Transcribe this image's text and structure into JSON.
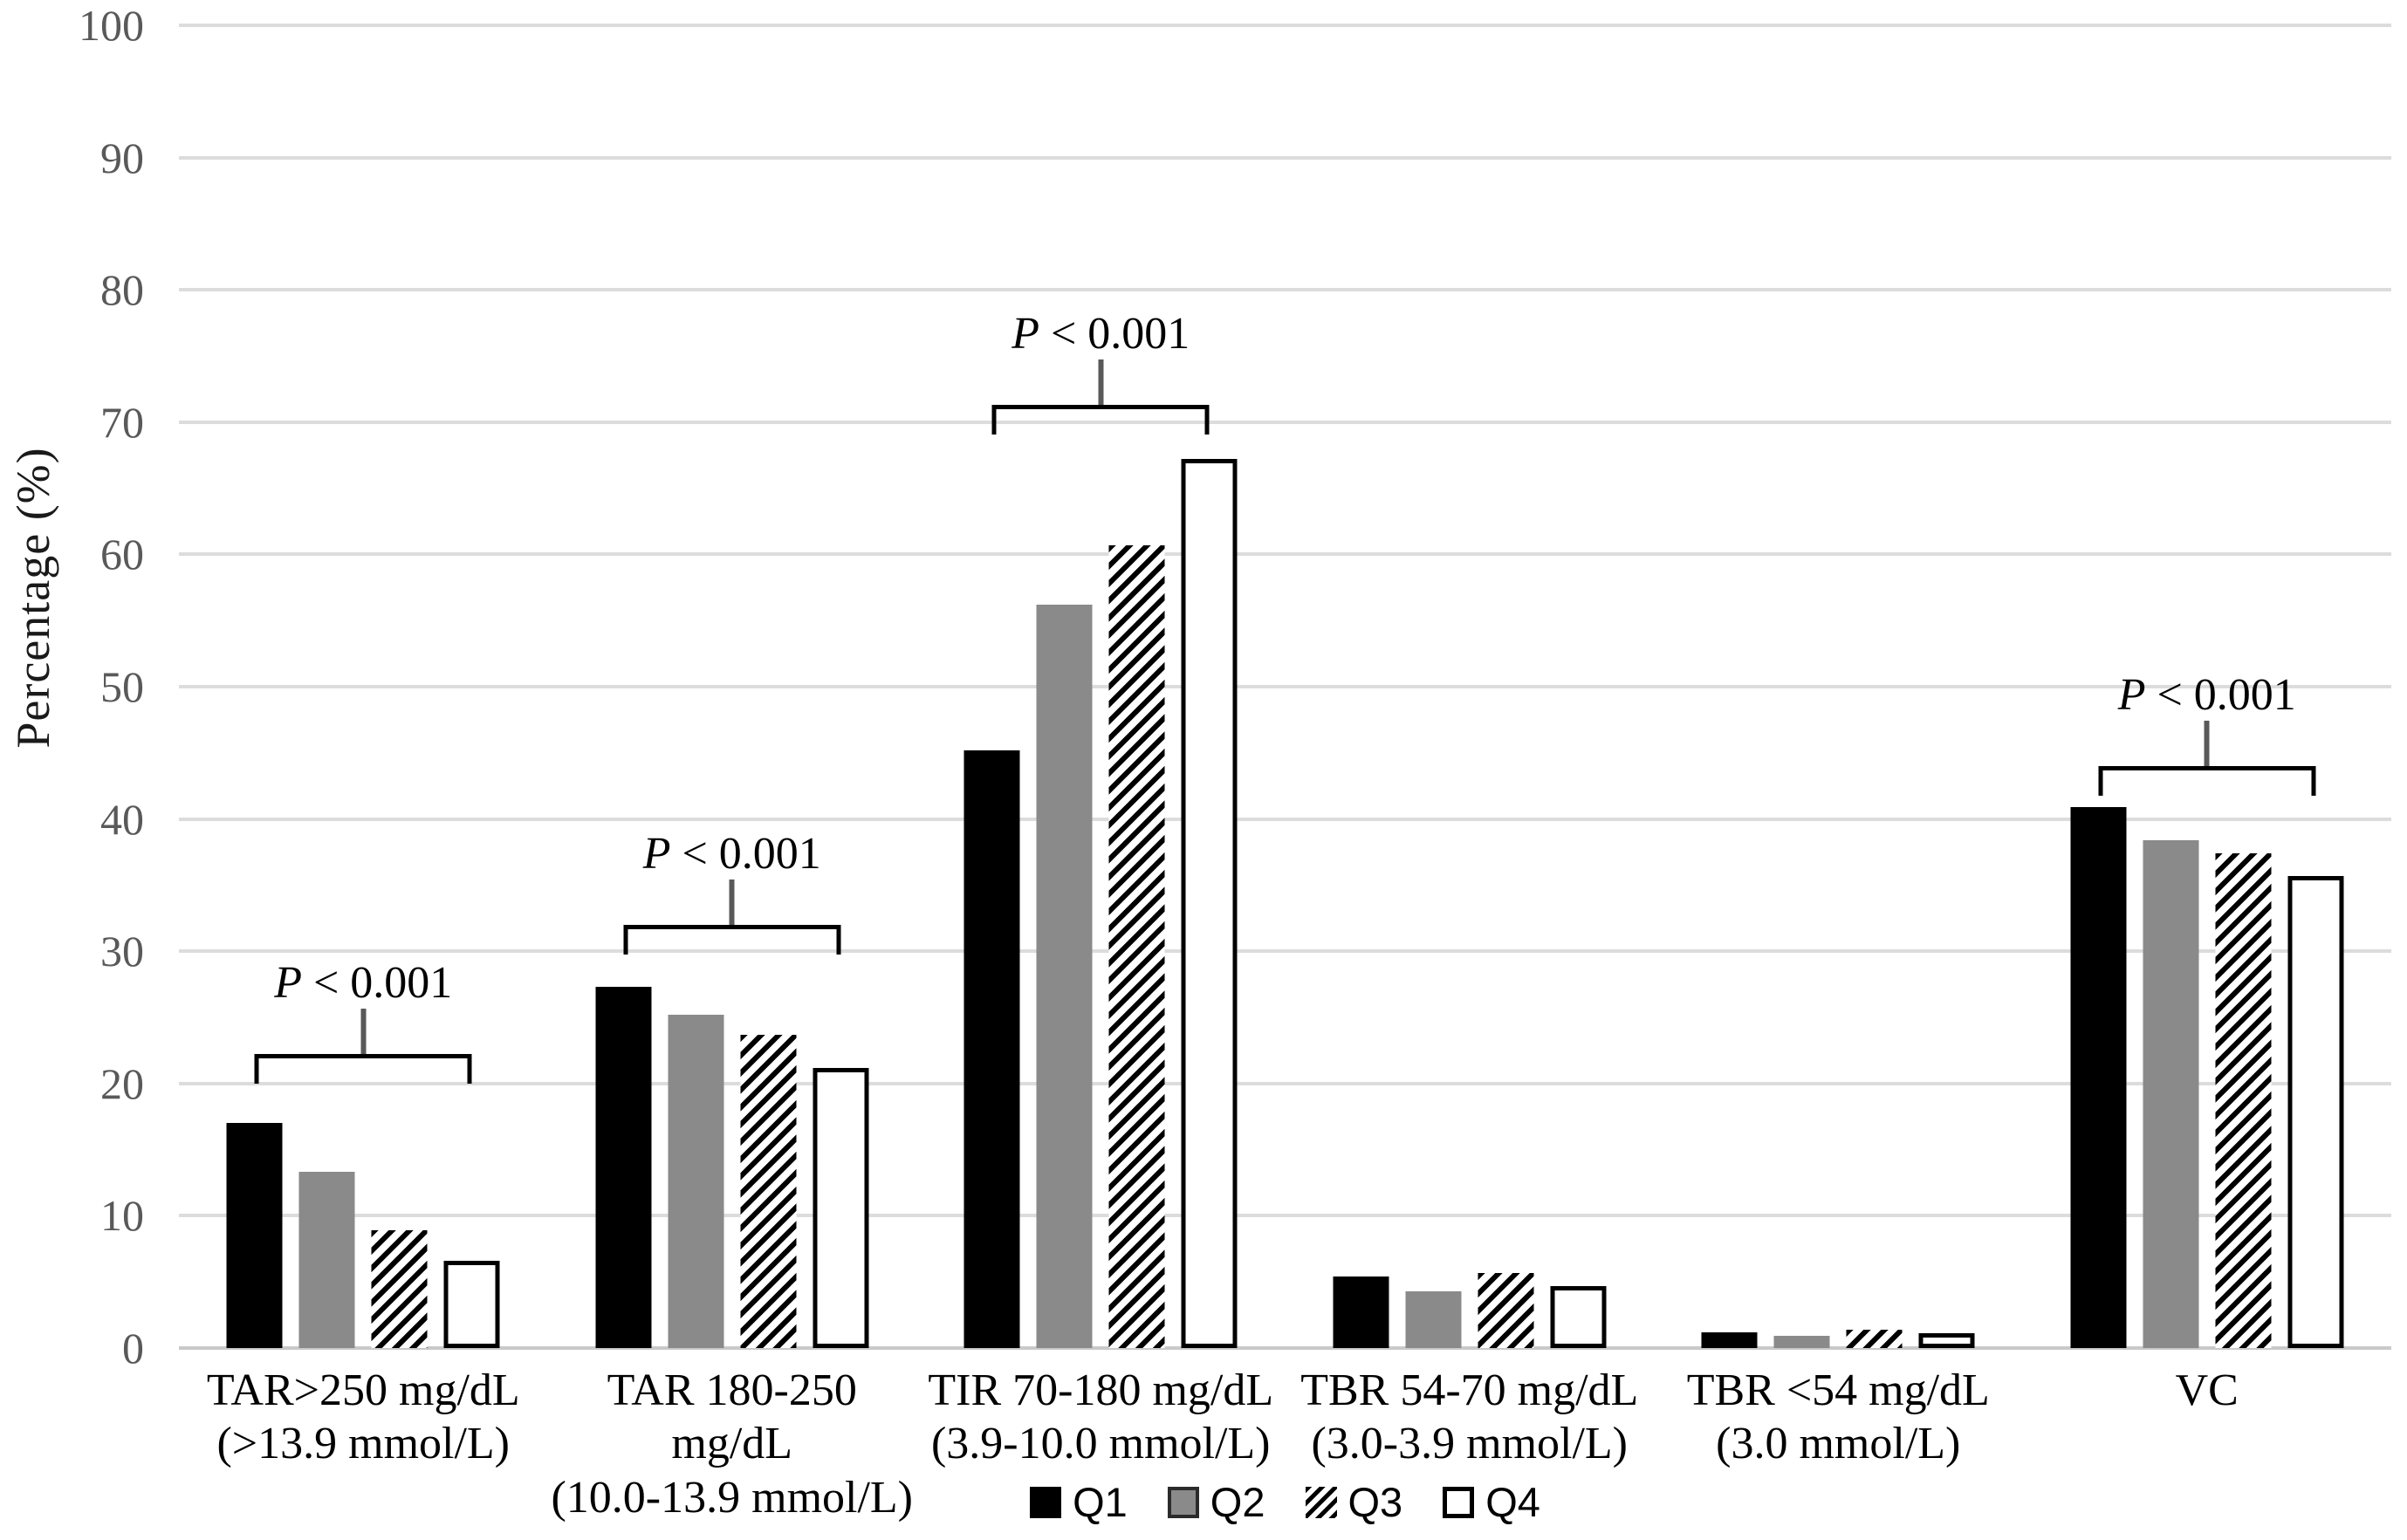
{
  "chart_data": {
    "type": "bar",
    "title": "",
    "ylabel": "Percentage (%)",
    "xlabel": "",
    "ylim": [
      0,
      100
    ],
    "ytick_step": 10,
    "grid": true,
    "legend_position": "bottom",
    "categories": [
      [
        "TAR>250 mg/dL",
        "(>13.9 mmol/L)"
      ],
      [
        "TAR 180-250 mg/dL",
        "(10.0-13.9 mmol/L)"
      ],
      [
        "TIR 70-180 mg/dL",
        "(3.9-10.0 mmol/L)"
      ],
      [
        "TBR 54-70 mg/dL",
        "(3.0-3.9 mmol/L)"
      ],
      [
        "TBR <54 mg/dL",
        "(3.0 mmol/L)"
      ],
      [
        "VC"
      ]
    ],
    "series": [
      {
        "name": "Q1",
        "style": "solid-black",
        "color": "#000000",
        "values": [
          17.0,
          27.3,
          45.2,
          5.4,
          1.2,
          40.9
        ]
      },
      {
        "name": "Q2",
        "style": "solid-gray",
        "color": "#8a8a8a",
        "values": [
          13.3,
          25.2,
          56.2,
          4.3,
          0.9,
          38.4
        ]
      },
      {
        "name": "Q3",
        "style": "diagonal-hatch",
        "color": "#000000",
        "values": [
          8.9,
          23.7,
          60.7,
          5.7,
          1.4,
          37.4
        ]
      },
      {
        "name": "Q4",
        "style": "outline-white",
        "color": "#ffffff",
        "values": [
          6.6,
          21.2,
          67.2,
          4.7,
          1.1,
          35.7
        ]
      }
    ],
    "annotations": [
      {
        "group": 0,
        "text": "P < 0.001",
        "bracket_y": 22.2
      },
      {
        "group": 1,
        "text": "P < 0.001",
        "bracket_y": 32.0
      },
      {
        "group": 2,
        "text": "P < 0.001",
        "bracket_y": 71.3
      },
      {
        "group": 5,
        "text": "P < 0.001",
        "bracket_y": 44.0
      }
    ],
    "colors": {
      "gridline": "#dcdcdc",
      "axis_line": "#c9c9c9",
      "tick_text": "#595959",
      "label_text": "#000000"
    }
  }
}
